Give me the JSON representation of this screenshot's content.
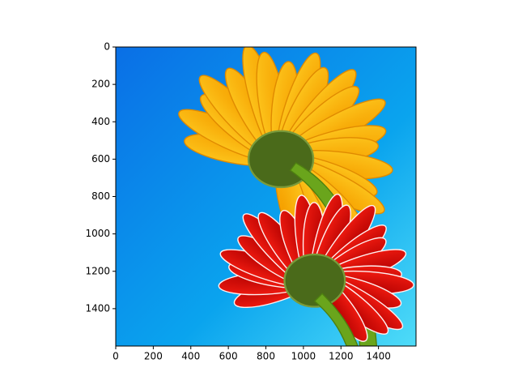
{
  "chart_data": {
    "type": "image",
    "xlim": [
      0,
      1600
    ],
    "ylim": [
      1600,
      0
    ],
    "xticks": [
      0,
      200,
      400,
      600,
      800,
      1000,
      1200,
      1400
    ],
    "yticks": [
      0,
      200,
      400,
      600,
      800,
      1000,
      1200,
      1400
    ]
  }
}
